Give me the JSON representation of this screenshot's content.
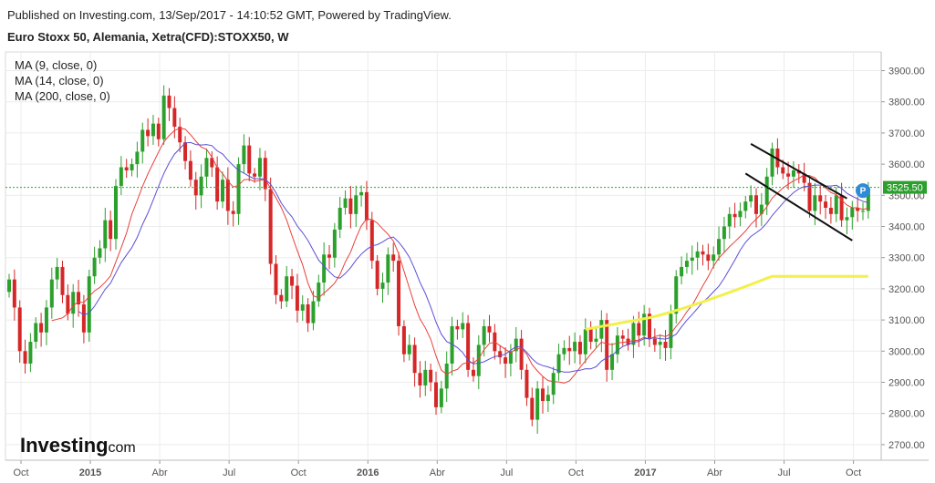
{
  "header": {
    "published": "Published on Investing.com, 13/Sep/2017 - 14:10:52 GMT, Powered by TradingView.",
    "symbol": "Euro Stoxx 50, Alemania, Xetra(CFD):STOXX50, W"
  },
  "brand": {
    "main": "Investing",
    "suffix": ".com"
  },
  "chart_data": {
    "type": "candlestick",
    "ylim": [
      2650,
      3960
    ],
    "y_ticks": [
      "2700.00",
      "2800.00",
      "2900.00",
      "3000.00",
      "3100.00",
      "3200.00",
      "3300.00",
      "3400.00",
      "3500.00",
      "3600.00",
      "3700.00",
      "3800.00",
      "3900.00"
    ],
    "x_ticks": [
      {
        "label": "Oct",
        "week": 0,
        "bold": false
      },
      {
        "label": "2015",
        "week": 13,
        "bold": true
      },
      {
        "label": "Abr",
        "week": 26,
        "bold": false
      },
      {
        "label": "Jul",
        "week": 39,
        "bold": false
      },
      {
        "label": "Oct",
        "week": 52,
        "bold": false
      },
      {
        "label": "2016",
        "week": 65,
        "bold": true
      },
      {
        "label": "Abr",
        "week": 78,
        "bold": false
      },
      {
        "label": "Jul",
        "week": 91,
        "bold": false
      },
      {
        "label": "Oct",
        "week": 104,
        "bold": false
      },
      {
        "label": "2017",
        "week": 117,
        "bold": true
      },
      {
        "label": "Abr",
        "week": 130,
        "bold": false
      },
      {
        "label": "Jul",
        "week": 143,
        "bold": false
      },
      {
        "label": "Oct",
        "week": 156,
        "bold": false
      }
    ],
    "last_price": "3525.50",
    "last_value": 3525.5,
    "indicators": [
      {
        "label": "MA (9, close, 0)",
        "period": 9,
        "color": "#e8403a"
      },
      {
        "label": "MA (14, close, 0)",
        "period": 14,
        "color": "#5b4fd6"
      },
      {
        "label": "MA (200, close, 0)",
        "period": 200,
        "color": "#f2f04a"
      }
    ],
    "closes": [
      3230,
      3140,
      3000,
      2960,
      3030,
      3090,
      3060,
      3140,
      3230,
      3270,
      3180,
      3120,
      3190,
      3150,
      3060,
      3240,
      3300,
      3330,
      3420,
      3360,
      3530,
      3590,
      3580,
      3600,
      3640,
      3710,
      3690,
      3730,
      3680,
      3820,
      3780,
      3720,
      3670,
      3610,
      3550,
      3500,
      3560,
      3620,
      3590,
      3480,
      3550,
      3450,
      3440,
      3600,
      3660,
      3570,
      3560,
      3620,
      3520,
      3280,
      3180,
      3160,
      3240,
      3210,
      3130,
      3150,
      3090,
      3160,
      3220,
      3310,
      3300,
      3390,
      3460,
      3490,
      3440,
      3500,
      3510,
      3420,
      3290,
      3200,
      3220,
      3310,
      3290,
      3080,
      2990,
      3020,
      2930,
      2890,
      2940,
      2900,
      2820,
      2880,
      2960,
      3080,
      3070,
      3090,
      2940,
      2920,
      3020,
      3080,
      3060,
      3000,
      2980,
      2960,
      3000,
      3040,
      2940,
      2850,
      2780,
      2880,
      2840,
      2860,
      2930,
      2990,
      3010,
      3000,
      3030,
      2990,
      3070,
      3030,
      3040,
      3100,
      2940,
      2990,
      3050,
      3040,
      3020,
      3090,
      3050,
      3120,
      3040,
      3020,
      3030,
      3010,
      3120,
      3240,
      3270,
      3290,
      3300,
      3320,
      3310,
      3290,
      3310,
      3360,
      3400,
      3440,
      3430,
      3450,
      3480,
      3500,
      3440,
      3470,
      3560,
      3650,
      3590,
      3570,
      3560,
      3580,
      3570,
      3540,
      3450,
      3500,
      3480,
      3460,
      3440,
      3500,
      3420,
      3430,
      3460,
      3450,
      3450,
      3525
    ]
  }
}
